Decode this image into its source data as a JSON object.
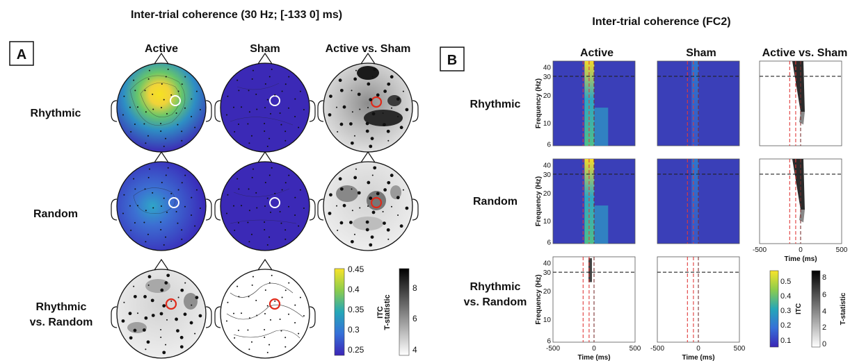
{
  "panel_a": {
    "letter": "A",
    "title": "Inter-trial coherence (30 Hz; [-133 0] ms)",
    "columns": [
      "Active",
      "Sham",
      "Active vs. Sham"
    ],
    "rows": [
      {
        "line1": "Rhythmic",
        "line2": ""
      },
      {
        "line1": "Random",
        "line2": ""
      },
      {
        "line1": "Rhythmic",
        "line2": "vs. Random"
      }
    ],
    "itc_colorbar": {
      "label": "ITC",
      "ticks": [
        "0.45",
        "0.4",
        "0.35",
        "0.3",
        "0.25"
      ],
      "top": "#f5e62a",
      "bottom": "#3b25b6"
    },
    "t_colorbar": {
      "label": "T-statistic",
      "ticks": [
        "8",
        "6",
        "4"
      ]
    }
  },
  "panel_b": {
    "letter": "B",
    "title": "Inter-trial coherence (FC2)",
    "columns": [
      "Active",
      "Sham",
      "Active vs. Sham"
    ],
    "rows": [
      {
        "line1": "Rhythmic",
        "line2": ""
      },
      {
        "line1": "Random",
        "line2": ""
      },
      {
        "line1": "Rhythmic",
        "line2": "vs. Random"
      }
    ],
    "ylabel": "Frequency (Hz)",
    "xlabel": "Time (ms)",
    "yticks": [
      "40",
      "30",
      "20",
      "10",
      "6"
    ],
    "xticks": [
      "-500",
      "0",
      "500"
    ],
    "itc_colorbar": {
      "label": "ITC",
      "ticks": [
        "0.5",
        "0.4",
        "0.3",
        "0.2",
        "0.1"
      ]
    },
    "t_colorbar": {
      "label": "T-statistic",
      "ticks": [
        "8",
        "6",
        "4",
        "2",
        "0"
      ]
    }
  },
  "colors": {
    "red_marker": "#e02a1a",
    "white_marker": "#ffffff",
    "dashed_black": "#222222",
    "dashed_red": "#e03a3a"
  }
}
